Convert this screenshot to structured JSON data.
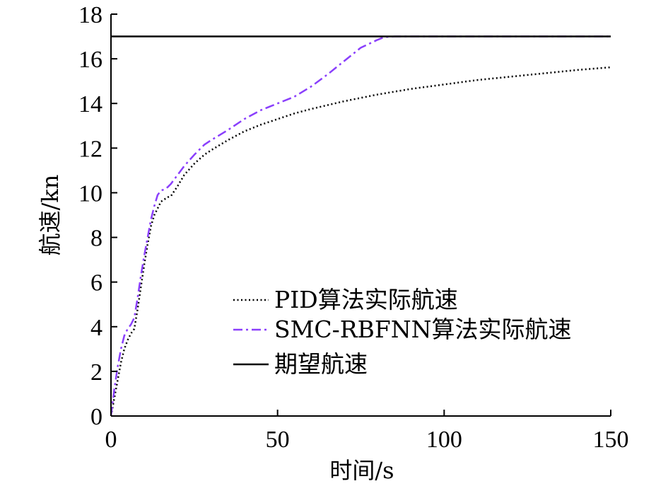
{
  "chart_data": {
    "type": "line",
    "xlabel": "时间/s",
    "ylabel": "航速/kn",
    "xlim": [
      0,
      150
    ],
    "ylim": [
      0,
      18
    ],
    "xticks": [
      0,
      50,
      100,
      150
    ],
    "yticks": [
      0,
      2,
      4,
      6,
      8,
      10,
      12,
      14,
      16,
      18
    ],
    "grid": false,
    "legend_position": "center-right",
    "series": [
      {
        "name": "PID算法实际航速",
        "style": "dotted",
        "color": "#000000",
        "x": [
          0,
          1,
          2,
          3,
          4,
          5,
          6,
          7,
          8,
          9,
          10,
          11,
          12,
          13,
          14,
          15,
          16,
          17,
          18,
          20,
          22,
          25,
          28,
          30,
          35,
          40,
          45,
          50,
          55,
          60,
          70,
          80,
          90,
          100,
          110,
          120,
          130,
          140,
          150
        ],
        "y": [
          0,
          0.8,
          1.6,
          2.4,
          3.0,
          3.4,
          3.7,
          3.9,
          4.8,
          5.8,
          6.8,
          7.7,
          8.5,
          9.0,
          9.3,
          9.6,
          9.7,
          9.8,
          9.85,
          10.3,
          10.8,
          11.3,
          11.7,
          11.9,
          12.35,
          12.75,
          13.05,
          13.3,
          13.55,
          13.75,
          14.1,
          14.4,
          14.65,
          14.85,
          15.05,
          15.2,
          15.35,
          15.5,
          15.62
        ]
      },
      {
        "name": "SMC-RBFNN算法实际航速",
        "style": "dash-dot",
        "color": "#8a3ffc",
        "x": [
          0,
          1,
          2,
          3,
          4,
          5,
          6,
          7,
          8,
          9,
          10,
          11,
          12,
          13,
          14,
          15,
          16,
          17,
          18,
          20,
          22,
          25,
          28,
          30,
          35,
          40,
          45,
          50,
          55,
          60,
          65,
          70,
          75,
          80,
          82,
          85,
          90,
          100,
          110,
          120,
          130,
          140,
          150
        ],
        "y": [
          0,
          1.2,
          2.2,
          3.0,
          3.6,
          3.9,
          4.1,
          4.4,
          5.3,
          6.3,
          7.2,
          8.0,
          8.8,
          9.4,
          9.9,
          10.1,
          10.15,
          10.25,
          10.4,
          10.8,
          11.2,
          11.7,
          12.15,
          12.35,
          12.8,
          13.3,
          13.7,
          14.0,
          14.3,
          14.75,
          15.3,
          15.9,
          16.5,
          16.85,
          16.97,
          17.0,
          17.0,
          17.0,
          17.0,
          17.0,
          17.0,
          17.0,
          17.0
        ]
      },
      {
        "name": "期望航速",
        "style": "solid",
        "color": "#000000",
        "x": [
          0,
          150
        ],
        "y": [
          17,
          17
        ]
      }
    ]
  }
}
